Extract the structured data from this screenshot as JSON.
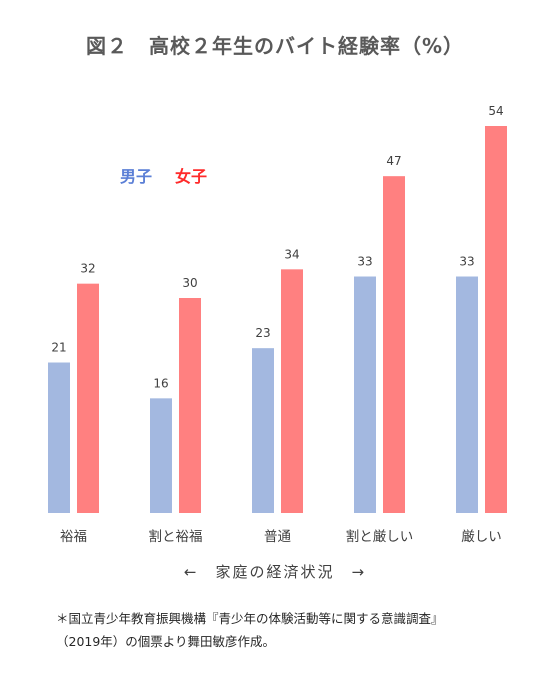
{
  "chart_data": {
    "type": "bar",
    "title": "図２　高校２年生のバイト経験率（%）",
    "categories": [
      "裕福",
      "割と裕福",
      "普通",
      "割と厳しい",
      "厳しい"
    ],
    "series": [
      {
        "name": "男子",
        "color": "#a3b8e0",
        "values": [
          21,
          16,
          23,
          33,
          33
        ]
      },
      {
        "name": "女子",
        "color": "#ff8080",
        "values": [
          32,
          30,
          34,
          47,
          54
        ]
      }
    ],
    "legend_colors": {
      "male": "#5b7fd6",
      "female": "#ff2a2a"
    },
    "ylim": [
      0,
      54
    ],
    "grid": false,
    "legend": "top-left",
    "xlabel": "←　家庭の経済状況　→",
    "ylabel": ""
  },
  "note": {
    "line1": "＊国立青少年教育振興機構『青少年の体験活動等に関する意識調査』",
    "line2": "（2019年）の個票より舞田敏彦作成。"
  }
}
